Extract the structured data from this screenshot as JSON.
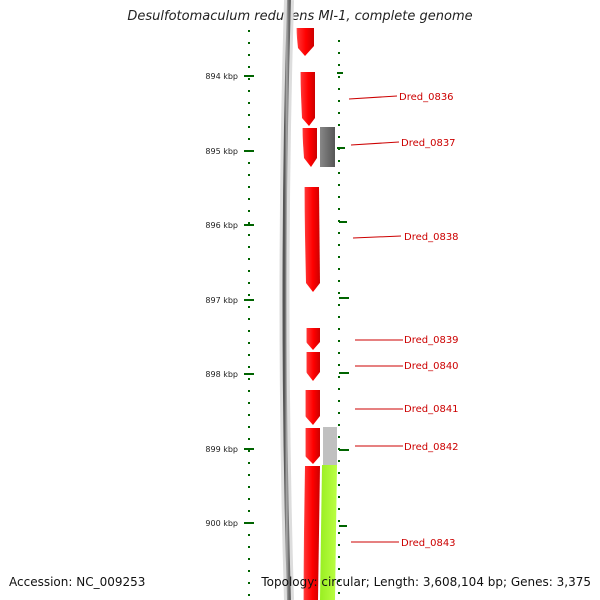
{
  "title": "Desulfotomaculum reducens MI-1, complete genome",
  "footer": {
    "accession": "Accession: NC_009253",
    "stats": "Topology: circular; Length: 3,608,104 bp; Genes: 3,375"
  },
  "colors": {
    "forward_cds": "#ff0000",
    "reverse_gray": "#666666",
    "reverse_lightgray": "#c0c0c0",
    "reverse_green": "#aaff33",
    "tick": "#006400",
    "backbone": "#888888"
  },
  "scale_ticks": [
    {
      "label": "894 kbp"
    },
    {
      "label": "895 kbp"
    },
    {
      "label": "896 kbp"
    },
    {
      "label": "897 kbp"
    },
    {
      "label": "898 kbp"
    },
    {
      "label": "899 kbp"
    },
    {
      "label": "900 kbp"
    }
  ],
  "gene_labels": [
    {
      "name": "Dred_0836"
    },
    {
      "name": "Dred_0837"
    },
    {
      "name": "Dred_0838"
    },
    {
      "name": "Dred_0839"
    },
    {
      "name": "Dred_0840"
    },
    {
      "name": "Dred_0841"
    },
    {
      "name": "Dred_0842"
    },
    {
      "name": "Dred_0843"
    }
  ]
}
